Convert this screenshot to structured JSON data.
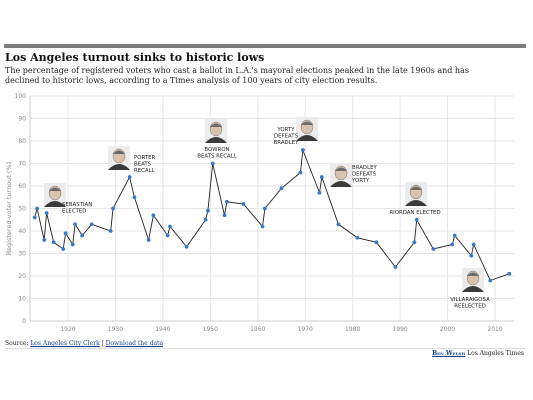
{
  "header": {
    "title": "Los Angeles turnout sinks to historic lows",
    "subtitle": "The percentage of registered voters who cast a ballot in L.A.'s mayoral elections peaked in the late 1960s and has declined to historic lows, according to a Times analysis of 100 years of city election results."
  },
  "chart_data": {
    "type": "line",
    "title": "",
    "xlabel": "",
    "ylabel": "Registered-voter turnout (%)",
    "xlim": [
      1912,
      2014
    ],
    "ylim": [
      0,
      100
    ],
    "xticks": [
      1920,
      1930,
      1940,
      1950,
      1960,
      1970,
      1980,
      1990,
      2000,
      2010
    ],
    "yticks": [
      0,
      10,
      20,
      30,
      40,
      50,
      60,
      70,
      80,
      90,
      100
    ],
    "grid": true,
    "series": [
      {
        "name": "Registered-voter turnout",
        "x": [
          1913,
          1913.5,
          1915,
          1915.5,
          1917,
          1919,
          1919.5,
          1921,
          1921.5,
          1923,
          1925,
          1929,
          1929.5,
          1933,
          1934,
          1937,
          1938,
          1941,
          1941.5,
          1945,
          1949,
          1949.5,
          1950.5,
          1953,
          1953.5,
          1957,
          1961,
          1961.5,
          1965,
          1969,
          1969.5,
          1973,
          1973.5,
          1977,
          1981,
          1985,
          1989,
          1993,
          1993.5,
          1997,
          2001,
          2001.5,
          2005,
          2005.5,
          2009,
          2013
        ],
        "y": [
          46,
          50,
          36,
          48,
          35,
          32,
          39,
          34,
          43,
          38,
          43,
          40,
          50,
          64,
          55,
          36,
          47,
          38,
          42,
          33,
          45,
          49,
          70,
          47,
          53,
          52,
          42,
          50,
          59,
          66,
          76,
          57,
          64,
          43,
          37,
          35,
          24,
          35,
          45,
          32,
          34,
          38,
          29,
          34,
          18,
          21
        ]
      }
    ],
    "annotations": [
      {
        "text": "SEBASTIAN ELECTED",
        "lines": [
          "SEBASTIAN",
          "ELECTED"
        ],
        "year": 1915
      },
      {
        "text": "PORTER BEATS RECALL",
        "lines": [
          "PORTER",
          "BEATS",
          "RECALL"
        ],
        "year": 1933
      },
      {
        "text": "BOWRON BEATS RECALL",
        "lines": [
          "BOWRON",
          "BEATS RECALL"
        ],
        "year": 1950.5
      },
      {
        "text": "YORTY DEFEATS BRADLEY",
        "lines": [
          "YORTY",
          "DEFEATS",
          "BRADLEY"
        ],
        "year": 1969.5
      },
      {
        "text": "BRADLEY DEFEATS YORTY",
        "lines": [
          "BRADLEY",
          "DEFEATS",
          "YORTY"
        ],
        "year": 1973
      },
      {
        "text": "RIORDAN ELECTED",
        "lines": [
          "RIORDAN ELECTED"
        ],
        "year": 1993.5
      },
      {
        "text": "VILLARAIGOSA REELECTED",
        "lines": [
          "VILLARAIGOSA",
          "REELECTED"
        ],
        "year": 2005
      }
    ],
    "colors": {
      "line": "#222222",
      "marker": "#3a78c9",
      "grid": "#e6e6e6",
      "axis_text": "#888888"
    }
  },
  "footer": {
    "source_prefix": "Source:",
    "source_link": "Los Angeles City Clerk",
    "separator": "|",
    "download_link": "Download the data",
    "author": "Ben Welsh",
    "publication": "Los Angeles Times"
  }
}
